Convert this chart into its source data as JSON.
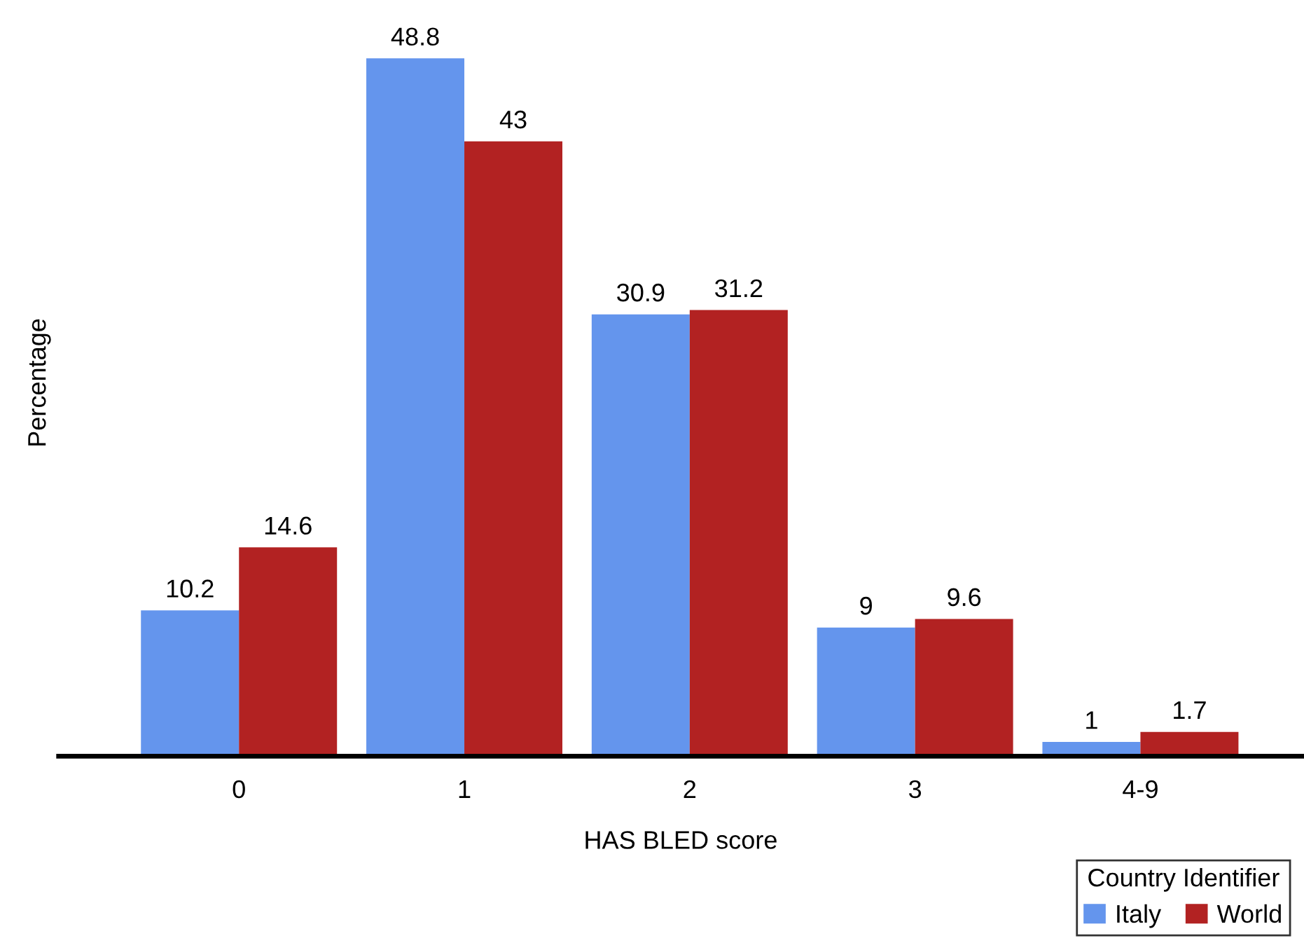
{
  "chart_data": {
    "type": "bar",
    "xlabel": "HAS BLED score",
    "ylabel": "Percentage",
    "legend_title": "Country Identifier",
    "categories": [
      "0",
      "1",
      "2",
      "3",
      "4-9"
    ],
    "series": [
      {
        "name": "Italy",
        "color": "#6495ed",
        "values": [
          10.2,
          48.8,
          30.9,
          9,
          1
        ]
      },
      {
        "name": "World",
        "color": "#b22222",
        "values": [
          14.6,
          43,
          31.2,
          9.6,
          1.7
        ]
      }
    ],
    "data_labels": true,
    "legend": "bottom right",
    "grid": false,
    "tick_labels": "x"
  }
}
